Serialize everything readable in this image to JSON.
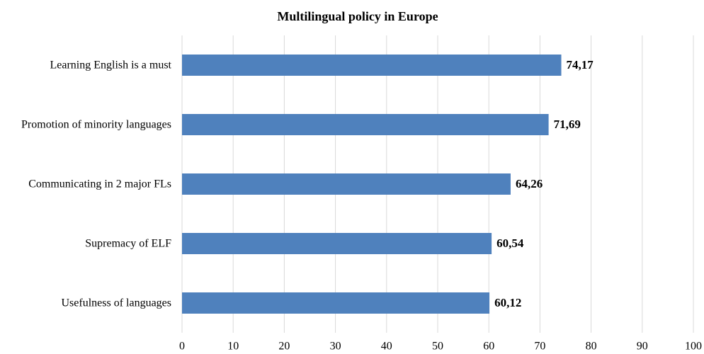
{
  "chart_data": {
    "type": "bar",
    "orientation": "horizontal",
    "title": "Multilingual policy in Europe",
    "categories": [
      "Learning English is a must",
      "Promotion of minority languages",
      "Communicating in 2 major FLs",
      "Supremacy of ELF",
      "Usefulness of languages"
    ],
    "values": [
      74.17,
      71.69,
      64.26,
      60.54,
      60.12
    ],
    "value_labels": [
      "74,17",
      "71,69",
      "64,26",
      "60,54",
      "60,12"
    ],
    "color": "#4f81bd",
    "xlim": [
      0,
      100
    ],
    "xticks": [
      0,
      10,
      20,
      30,
      40,
      50,
      60,
      70,
      80,
      90,
      100
    ],
    "grid": true
  }
}
